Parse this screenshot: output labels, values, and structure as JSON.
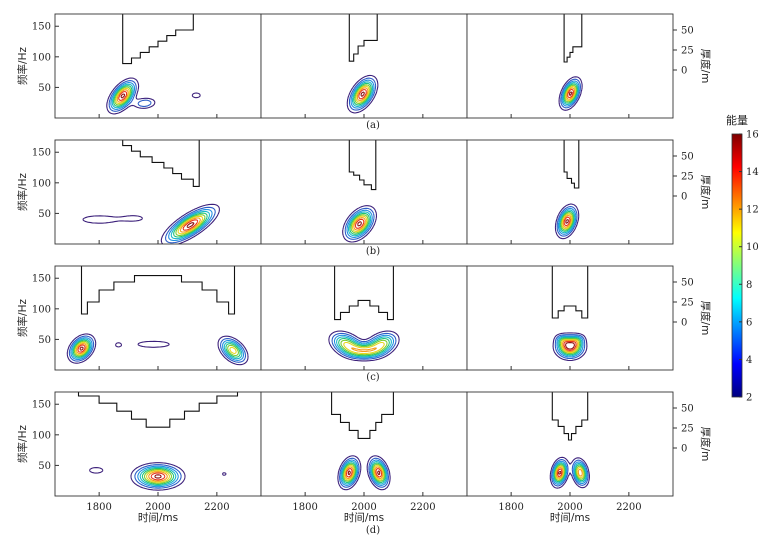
{
  "chart_data": {
    "type": "contour",
    "rows": 4,
    "cols": 3,
    "row_labels": [
      "(a)",
      "(b)",
      "(c)",
      "(d)"
    ],
    "ylabel": "频率/Hz",
    "y2label": "厚度/m",
    "xlabel": "时间/ms",
    "xlim": [
      1650,
      2350
    ],
    "ylim": [
      0,
      170
    ],
    "xticks": [
      1800,
      2000,
      2200
    ],
    "yticks": [
      50,
      100,
      150
    ],
    "thickness_ticks": [
      0,
      25,
      50
    ],
    "thickness_ylim": [
      -60,
      70
    ],
    "colorbar": {
      "title": "能量",
      "range": [
        2,
        16
      ],
      "ticks": [
        2,
        4,
        6,
        8,
        10,
        12,
        14,
        16
      ],
      "colormap": "jet"
    },
    "contour_levels": [
      2,
      3.5,
      5,
      6.5,
      8,
      9.5,
      11,
      12.5,
      14,
      15.5
    ],
    "level_colors": [
      "#3b1f7a",
      "#2a5cc7",
      "#1f8fe0",
      "#17b7c9",
      "#1ec277",
      "#7ccd2e",
      "#e7d51d",
      "#f59a1a",
      "#e8321a",
      "#8a0c0c"
    ],
    "panels": [
      [
        {
          "profile": {
            "time": [
              1880,
              1880,
              1910,
              1910,
              1940,
              1940,
              1970,
              1970,
              2000,
              2000,
              2030,
              2030,
              2060,
              2060,
              2120,
              2120
            ],
            "thickness": [
              70,
              8,
              8,
              15,
              15,
              22,
              22,
              29,
              29,
              36,
              36,
              43,
              43,
              50,
              50,
              70
            ]
          },
          "blobs": [
            {
              "t": 1880,
              "f": 36,
              "st": 22,
              "sf": 12,
              "peak": 16,
              "tilt": -0.55
            },
            {
              "t": 1955,
              "f": 24,
              "st": 25,
              "sf": 6,
              "peak": 5,
              "tilt": -0.15
            },
            {
              "t": 2130,
              "f": 37,
              "st": 14,
              "sf": 4,
              "peak": 3.2,
              "tilt": 0
            }
          ]
        },
        {
          "profile": {
            "time": [
              1950,
              1950,
              1965,
              1965,
              1980,
              1980,
              2000,
              2000,
              2045,
              2045
            ],
            "thickness": [
              70,
              11,
              11,
              20,
              20,
              30,
              30,
              37,
              37,
              70
            ]
          },
          "blobs": [
            {
              "t": 1995,
              "f": 39,
              "st": 22,
              "sf": 13,
              "peak": 16,
              "tilt": -0.5
            }
          ]
        },
        {
          "profile": {
            "time": [
              1980,
              1980,
              1990,
              1990,
              2000,
              2000,
              2010,
              2010,
              2040,
              2040
            ],
            "thickness": [
              70,
              10,
              10,
              16,
              16,
              22,
              22,
              29,
              29,
              70
            ]
          },
          "blobs": [
            {
              "t": 2002,
              "f": 40,
              "st": 17,
              "sf": 12,
              "peak": 16,
              "tilt": -0.45
            }
          ]
        }
      ],
      [
        {
          "profile": {
            "time": [
              1880,
              1880,
              1910,
              1910,
              1940,
              1940,
              1980,
              1980,
              2020,
              2020,
              2050,
              2050,
              2080,
              2080,
              2120,
              2120,
              2140,
              2140
            ],
            "thickness": [
              70,
              63,
              63,
              56,
              56,
              49,
              49,
              42,
              42,
              35,
              35,
              28,
              28,
              21,
              21,
              12,
              12,
              70
            ]
          },
          "blobs": [
            {
              "t": 2110,
              "f": 31,
              "st": 32,
              "sf": 11,
              "peak": 16,
              "tilt": -0.75
            },
            {
              "t": 1800,
              "f": 40,
              "st": 55,
              "sf": 6,
              "peak": 3.3,
              "tilt": 0
            },
            {
              "t": 1920,
              "f": 42,
              "st": 35,
              "sf": 5,
              "peak": 2.6,
              "tilt": 0
            }
          ]
        },
        {
          "profile": {
            "time": [
              1950,
              1950,
              1965,
              1965,
              1985,
              1985,
              2000,
              2000,
              2025,
              2025,
              2040,
              2040
            ],
            "thickness": [
              70,
              30,
              30,
              26,
              26,
              20,
              20,
              14,
              14,
              8,
              8,
              70
            ]
          },
          "blobs": [
            {
              "t": 1985,
              "f": 33,
              "st": 25,
              "sf": 13,
              "peak": 16,
              "tilt": -0.45
            }
          ]
        },
        {
          "profile": {
            "time": [
              1980,
              1980,
              1990,
              1990,
              2005,
              2005,
              2015,
              2015,
              2030,
              2030
            ],
            "thickness": [
              70,
              30,
              30,
              22,
              22,
              16,
              16,
              10,
              10,
              70
            ]
          },
          "blobs": [
            {
              "t": 1990,
              "f": 37,
              "st": 18,
              "sf": 13,
              "peak": 16,
              "tilt": -0.35
            }
          ]
        }
      ],
      [
        {
          "profile": {
            "time": [
              1740,
              1740,
              1760,
              1760,
              1800,
              1800,
              1850,
              1850,
              1920,
              1920,
              2080,
              2080,
              2150,
              2150,
              2200,
              2200,
              2240,
              2240,
              2260,
              2260
            ],
            "thickness": [
              70,
              10,
              10,
              25,
              25,
              40,
              40,
              50,
              50,
              58,
              58,
              50,
              50,
              40,
              40,
              25,
              25,
              10,
              10,
              70
            ]
          },
          "blobs": [
            {
              "t": 1740,
              "f": 35,
              "st": 22,
              "sf": 11,
              "peak": 16,
              "tilt": -0.35
            },
            {
              "t": 2255,
              "f": 32,
              "st": 24,
              "sf": 11,
              "peak": 12,
              "tilt": 0.45
            },
            {
              "t": 1985,
              "f": 42,
              "st": 55,
              "sf": 5,
              "peak": 3.2,
              "tilt": 0
            },
            {
              "t": 1865,
              "f": 41,
              "st": 11,
              "sf": 4,
              "peak": 2.6,
              "tilt": 0
            }
          ]
        },
        {
          "profile": {
            "time": [
              1900,
              1900,
              1920,
              1920,
              1950,
              1950,
              1980,
              1980,
              2020,
              2020,
              2050,
              2050,
              2080,
              2080,
              2100,
              2100
            ],
            "thickness": [
              70,
              3,
              3,
              12,
              12,
              20,
              20,
              27,
              27,
              20,
              20,
              12,
              12,
              3,
              3,
              70
            ]
          },
          "blobs": [
            {
              "t": 1940,
              "f": 42,
              "st": 30,
              "sf": 11,
              "peak": 11,
              "tilt": 0.35
            },
            {
              "t": 2060,
              "f": 42,
              "st": 30,
              "sf": 11,
              "peak": 11,
              "tilt": -0.35
            },
            {
              "t": 2000,
              "f": 31,
              "st": 35,
              "sf": 8,
              "peak": 9,
              "tilt": 0
            }
          ]
        },
        {
          "profile": {
            "time": [
              1940,
              1940,
              1960,
              1960,
              1980,
              1980,
              2020,
              2020,
              2040,
              2040,
              2060,
              2060
            ],
            "thickness": [
              70,
              5,
              5,
              14,
              14,
              20,
              20,
              14,
              14,
              5,
              5,
              70
            ]
          },
          "blobs": [
            {
              "t": 2000,
              "f": 38,
              "st": 28,
              "sf": 11,
              "peak": 16,
              "tilt": 0
            },
            {
              "t": 1975,
              "f": 48,
              "st": 15,
              "sf": 6,
              "peak": 4,
              "tilt": 0.3
            },
            {
              "t": 2025,
              "f": 48,
              "st": 15,
              "sf": 6,
              "peak": 4,
              "tilt": -0.3
            }
          ]
        }
      ],
      [
        {
          "profile": {
            "time": [
              1730,
              1730,
              1800,
              1800,
              1860,
              1860,
              1910,
              1910,
              1960,
              1960,
              2040,
              2040,
              2090,
              2090,
              2140,
              2140,
              2200,
              2200,
              2270,
              2270
            ],
            "thickness": [
              70,
              65,
              65,
              56,
              56,
              46,
              46,
              36,
              36,
              26,
              26,
              36,
              36,
              46,
              46,
              56,
              56,
              65,
              65,
              70
            ]
          },
          "blobs": [
            {
              "t": 2000,
              "f": 32,
              "st": 45,
              "sf": 11,
              "peak": 16,
              "tilt": 0
            },
            {
              "t": 1790,
              "f": 42,
              "st": 25,
              "sf": 5,
              "peak": 3,
              "tilt": 0
            },
            {
              "t": 2225,
              "f": 36,
              "st": 8,
              "sf": 3,
              "peak": 2.7,
              "tilt": 0
            }
          ]
        },
        {
          "profile": {
            "time": [
              1890,
              1890,
              1920,
              1920,
              1950,
              1950,
              1980,
              1980,
              2020,
              2020,
              2040,
              2040,
              2060,
              2060,
              2100,
              2100
            ],
            "thickness": [
              70,
              42,
              42,
              32,
              32,
              22,
              22,
              12,
              12,
              22,
              22,
              32,
              32,
              42,
              42,
              70
            ]
          },
          "blobs": [
            {
              "t": 1950,
              "f": 38,
              "st": 18,
              "sf": 13,
              "peak": 16,
              "tilt": -0.3
            },
            {
              "t": 2050,
              "f": 38,
              "st": 18,
              "sf": 13,
              "peak": 16,
              "tilt": 0.3
            }
          ]
        },
        {
          "profile": {
            "time": [
              1940,
              1940,
              1960,
              1960,
              1980,
              1980,
              1995,
              1995,
              2005,
              2005,
              2020,
              2020,
              2040,
              2040,
              2060,
              2060
            ],
            "thickness": [
              70,
              35,
              35,
              27,
              27,
              18,
              18,
              10,
              10,
              18,
              18,
              27,
              27,
              35,
              35,
              70
            ]
          },
          "blobs": [
            {
              "t": 1965,
              "f": 38,
              "st": 15,
              "sf": 12,
              "peak": 16,
              "tilt": -0.25
            },
            {
              "t": 2035,
              "f": 38,
              "st": 15,
              "sf": 12,
              "peak": 14,
              "tilt": 0.25
            }
          ]
        }
      ]
    ]
  }
}
